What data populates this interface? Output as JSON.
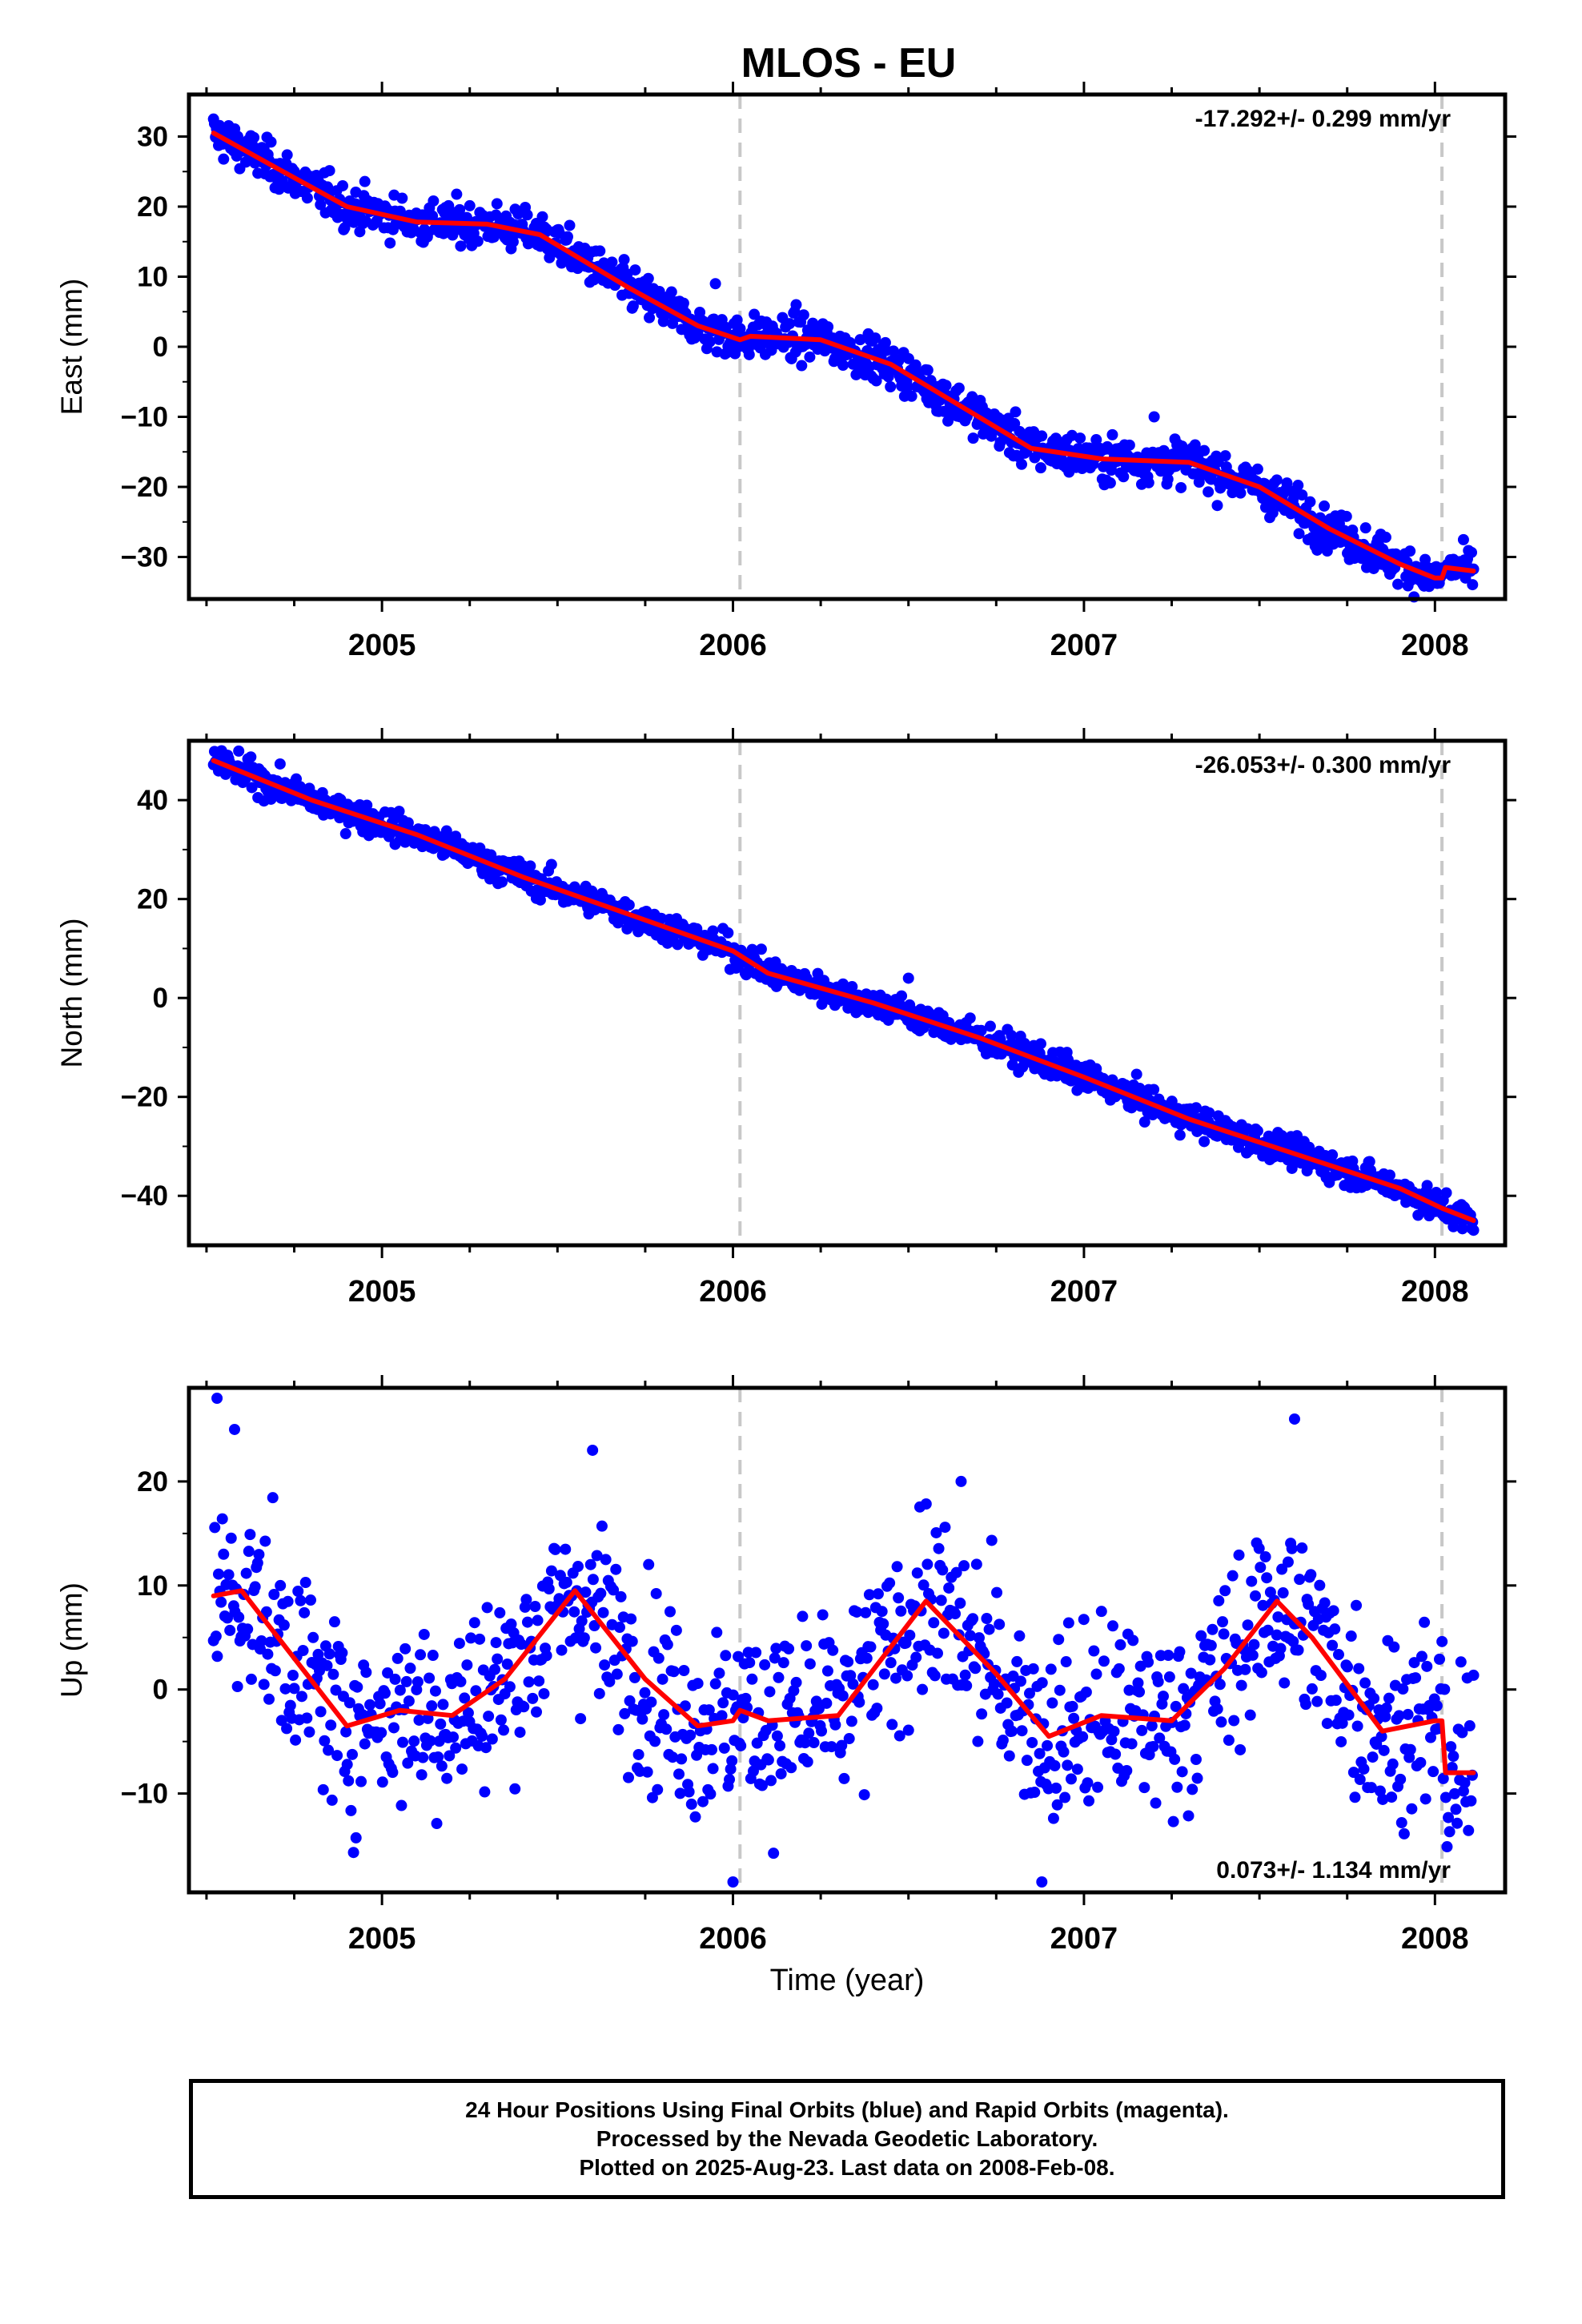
{
  "title": "MLOS - EU",
  "xlabel": "Time (year)",
  "colors": {
    "data": "#0000ff",
    "model": "#ff0000",
    "epoch_line": "#c8c8c8",
    "frame": "#000000"
  },
  "footer": {
    "line1": "24 Hour Positions Using Final Orbits (blue) and Rapid Orbits (magenta).",
    "line2": "Processed by the Nevada Geodetic Laboratory.",
    "line3": "Plotted on 2025-Aug-23. Last data on 2008-Feb-08."
  },
  "chart_data": [
    {
      "type": "scatter",
      "component": "east",
      "ylabel": "East (mm)",
      "rate_label": "-17.292+/- 0.299 mm/yr",
      "rate_position": "top-right",
      "xlim": [
        2004.45,
        2008.2
      ],
      "ylim": [
        -36,
        36
      ],
      "xticks": [
        2005,
        2006,
        2007,
        2008
      ],
      "yticks": [
        -30,
        -20,
        -10,
        0,
        10,
        20,
        30
      ],
      "epoch_lines": [
        2006.02,
        2008.02
      ],
      "time_span": [
        2004.52,
        2008.11
      ],
      "model_curve": {
        "x": [
          2004.52,
          2004.7,
          2004.9,
          2005.1,
          2005.3,
          2005.45,
          2005.7,
          2005.9,
          2006.02,
          2006.05,
          2006.25,
          2006.45,
          2006.65,
          2006.85,
          2007.05,
          2007.3,
          2007.5,
          2007.7,
          2007.9,
          2008.0,
          2008.02,
          2008.03,
          2008.11
        ],
        "y": [
          30.5,
          25.5,
          20.0,
          17.8,
          17.5,
          16.0,
          8.5,
          3.0,
          1.0,
          1.5,
          1.0,
          -2.5,
          -8.5,
          -14.5,
          -16.0,
          -16.5,
          -20.0,
          -26.0,
          -31.0,
          -33.0,
          -33.0,
          -31.5,
          -32.0
        ]
      },
      "scatter_noise_mm": 1.5,
      "outliers": [
        {
          "x": 2005.95,
          "y": 9
        },
        {
          "x": 2007.2,
          "y": -10
        },
        {
          "x": 2006.18,
          "y": 6
        }
      ]
    },
    {
      "type": "scatter",
      "component": "north",
      "ylabel": "North (mm)",
      "rate_label": "-26.053+/- 0.300 mm/yr",
      "rate_position": "top-right",
      "xlim": [
        2004.45,
        2008.2
      ],
      "ylim": [
        -50,
        52
      ],
      "xticks": [
        2005,
        2006,
        2007,
        2008
      ],
      "yticks": [
        -40,
        -20,
        0,
        20,
        40
      ],
      "epoch_lines": [
        2006.02,
        2008.02
      ],
      "time_span": [
        2004.52,
        2008.11
      ],
      "model_curve": {
        "x": [
          2004.52,
          2004.8,
          2005.1,
          2005.4,
          2005.7,
          2006.0,
          2006.1,
          2006.4,
          2006.7,
          2007.0,
          2007.3,
          2007.6,
          2007.9,
          2008.02,
          2008.11
        ],
        "y": [
          48.0,
          40.0,
          33.0,
          24.5,
          17.0,
          9.5,
          5.0,
          -1.0,
          -8.0,
          -16.0,
          -24.5,
          -31.5,
          -38.5,
          -42.5,
          -45.0
        ]
      },
      "scatter_noise_mm": 1.5,
      "outliers": [
        {
          "x": 2006.5,
          "y": 4
        }
      ]
    },
    {
      "type": "scatter",
      "component": "up",
      "ylabel": "Up (mm)",
      "rate_label": "0.073+/- 1.134 mm/yr",
      "rate_position": "bottom-right",
      "xlim": [
        2004.45,
        2008.2
      ],
      "ylim": [
        -19.5,
        29
      ],
      "xticks": [
        2005,
        2006,
        2007,
        2008
      ],
      "yticks": [
        -10,
        0,
        10,
        20
      ],
      "epoch_lines": [
        2006.02,
        2008.02
      ],
      "time_span": [
        2004.52,
        2008.11
      ],
      "model_curve": {
        "x": [
          2004.52,
          2004.6,
          2004.75,
          2004.9,
          2005.05,
          2005.2,
          2005.35,
          2005.55,
          2005.75,
          2005.9,
          2006.0,
          2006.02,
          2006.1,
          2006.3,
          2006.55,
          2006.75,
          2006.9,
          2007.05,
          2007.25,
          2007.4,
          2007.55,
          2007.65,
          2007.85,
          2008.0,
          2008.02,
          2008.03,
          2008.11
        ],
        "y": [
          9.0,
          9.5,
          3.0,
          -3.5,
          -2.0,
          -2.5,
          1.0,
          9.5,
          1.0,
          -3.5,
          -3.0,
          -2.0,
          -3.0,
          -2.5,
          8.5,
          1.5,
          -4.5,
          -2.5,
          -3.0,
          2.0,
          8.5,
          5.0,
          -4.0,
          -3.0,
          -3.0,
          -8.0,
          -8.0
        ]
      },
      "scatter_noise_mm": 4.5,
      "outliers": [
        {
          "x": 2004.53,
          "y": 28
        },
        {
          "x": 2004.58,
          "y": 25
        },
        {
          "x": 2005.6,
          "y": 23
        },
        {
          "x": 2006.65,
          "y": 20
        },
        {
          "x": 2007.6,
          "y": 26
        },
        {
          "x": 2006.0,
          "y": -18.5
        },
        {
          "x": 2006.88,
          "y": -18.5
        }
      ]
    }
  ]
}
